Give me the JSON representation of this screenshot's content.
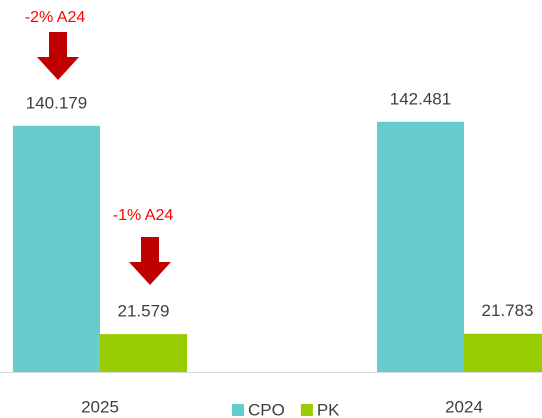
{
  "chart_data": {
    "type": "bar",
    "categories": [
      "2025",
      "2024"
    ],
    "series": [
      {
        "name": "CPO",
        "color": "#66cdcc",
        "values": [
          140.179,
          142.481
        ]
      },
      {
        "name": "PK",
        "color": "#99cc00",
        "values": [
          21.579,
          21.783
        ]
      }
    ],
    "ylim": [
      0,
      160
    ],
    "legend": "bottom",
    "annotations": [
      "-2% A24",
      "-1% A24"
    ]
  }
}
